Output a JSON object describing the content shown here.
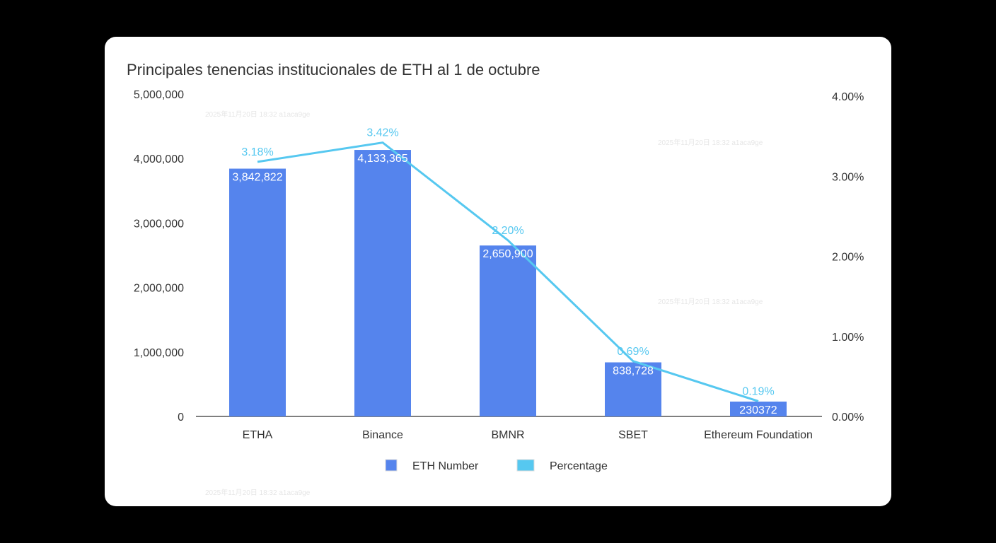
{
  "chart_data": {
    "type": "bar",
    "title": "Principales tenencias institucionales de ETH al 1 de octubre",
    "categories": [
      "ETHA",
      "Binance",
      "BMNR",
      "SBET",
      "Ethereum Foundation"
    ],
    "series": [
      {
        "name": "ETH Number",
        "type": "bar",
        "axis": "left",
        "color": "#5584ED",
        "values": [
          3842822,
          4133365,
          2650900,
          838728,
          230372
        ],
        "data_labels": [
          "3,842,822",
          "4,133,365",
          "2,650,900",
          "838,728",
          "230372"
        ]
      },
      {
        "name": "Percentage",
        "type": "line",
        "axis": "right",
        "color": "#56C8F0",
        "values": [
          3.18,
          3.42,
          2.2,
          0.69,
          0.19
        ],
        "data_labels": [
          "3.18%",
          "3.42%",
          "2.20%",
          "0.69%",
          "0.19%"
        ]
      }
    ],
    "y_left": {
      "range": [
        0,
        5000000
      ],
      "ticks": [
        "0",
        "1,000,000",
        "2,000,000",
        "3,000,000",
        "4,000,000",
        "5,000,000"
      ]
    },
    "y_right": {
      "range": [
        0,
        4
      ],
      "ticks": [
        "0.00%",
        "1.00%",
        "2.00%",
        "3.00%",
        "4.00%"
      ]
    },
    "grid": false,
    "legend": "bottom"
  },
  "watermark": "2025年11月20日 18:32 a1aca9ge"
}
